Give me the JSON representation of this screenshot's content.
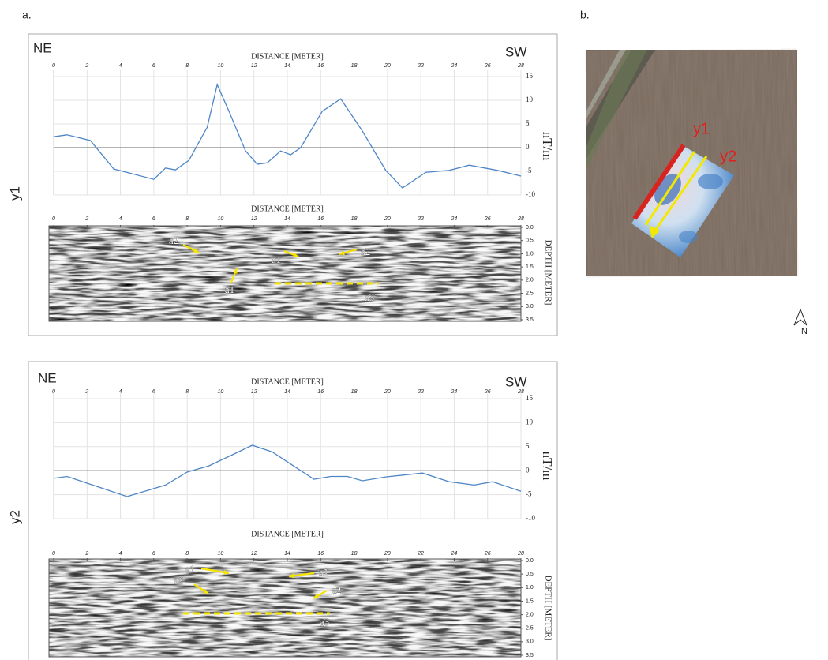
{
  "panel_labels": [
    "a.",
    "b."
  ],
  "map": {
    "north": "N"
  },
  "chart_data": [
    {
      "type": "line",
      "label": "y1",
      "left_label": "NE",
      "right_label": "SW",
      "title": "DISTANCE [METER]",
      "ylabel": "nT/m",
      "color": "#4f86c6",
      "grid": true,
      "x": [
        0,
        0.8,
        2.2,
        3.6,
        6,
        6.7,
        7.3,
        8.1,
        9.2,
        9.8,
        10.5,
        11.5,
        12.2,
        12.8,
        13.6,
        14.2,
        14.8,
        16.1,
        17.2,
        18.5,
        19.9,
        20.9,
        22.3,
        23.7,
        24.9,
        26.6,
        28
      ],
      "values": [
        2.3,
        2.7,
        1.5,
        -4.5,
        -6.7,
        -4.3,
        -4.7,
        -2.7,
        4.3,
        13.3,
        7.7,
        -0.7,
        -3.5,
        -3.2,
        -0.7,
        -1.5,
        0,
        7.7,
        10.3,
        3.5,
        -4.8,
        -8.5,
        -5.2,
        -4.8,
        -3.7,
        -4.8,
        -6
      ],
      "xlim": [
        0,
        28
      ],
      "xticks": [
        0,
        2,
        4,
        6,
        8,
        10,
        12,
        14,
        16,
        18,
        20,
        22,
        24,
        26,
        28
      ],
      "ylim": [
        -10,
        15
      ],
      "yticks": [
        -10,
        -5,
        0,
        5,
        10,
        15
      ]
    },
    {
      "type": "radargram",
      "title": "DISTANCE [METER]",
      "ylabel": "DEPTH [METER]",
      "xlim": [
        0,
        28
      ],
      "xticks": [
        0,
        2,
        4,
        6,
        8,
        10,
        12,
        14,
        16,
        18,
        20,
        22,
        24,
        26,
        28
      ],
      "ylim": [
        0,
        3.5
      ],
      "yticks": [
        {
          "value": 0,
          "label": "0.0"
        },
        0.5,
        {
          "value": 1,
          "label": "1.0"
        },
        1.5,
        {
          "value": 2,
          "label": "2.0"
        },
        2.5,
        {
          "value": 3,
          "label": "3.0"
        },
        3.5
      ],
      "annotations": [
        "a2",
        "a1",
        "a1",
        "a2",
        "a3"
      ]
    },
    {
      "type": "line",
      "label": "y2",
      "left_label": "NE",
      "right_label": "SW",
      "title": "DISTANCE [METER]",
      "ylabel": "nT/m",
      "color": "#4f86c6",
      "grid": true,
      "x": [
        0,
        0.8,
        2,
        4.4,
        6.7,
        8,
        9.3,
        10.7,
        11.9,
        13.1,
        14.5,
        15.6,
        16.6,
        17.6,
        18.5,
        19.9,
        22.1,
        23.7,
        25.2,
        26.3,
        28
      ],
      "values": [
        -1.6,
        -1.2,
        -2.6,
        -5.4,
        -3,
        -0.3,
        1,
        3.3,
        5.3,
        3.9,
        0.7,
        -1.8,
        -1.2,
        -1.2,
        -2.1,
        -1.3,
        -0.5,
        -2.3,
        -3,
        -2.3,
        -4.3
      ],
      "xlim": [
        0,
        28
      ],
      "xticks": [
        0,
        2,
        4,
        6,
        8,
        10,
        12,
        14,
        16,
        18,
        20,
        22,
        24,
        26,
        28
      ],
      "ylim": [
        -10,
        15
      ],
      "yticks": [
        -10,
        -5,
        0,
        5,
        10,
        15
      ]
    },
    {
      "type": "radargram",
      "title": "DISTANCE [METER]",
      "ylabel": "DEPTH [METER]",
      "xlim": [
        0,
        28
      ],
      "xticks": [
        0,
        2,
        4,
        6,
        8,
        10,
        12,
        14,
        16,
        18,
        20,
        22,
        24,
        26,
        28
      ],
      "ylim": [
        0,
        3.5
      ],
      "yticks": [
        {
          "value": 0,
          "label": "0.0"
        },
        0.5,
        {
          "value": 1,
          "label": "1.0"
        },
        1.5,
        {
          "value": 2,
          "label": "2.0"
        },
        2.5,
        {
          "value": 3,
          "label": "3.0"
        },
        3.5
      ],
      "annotations": [
        "a1",
        "a2",
        "a1",
        "a2",
        "a3"
      ]
    }
  ]
}
